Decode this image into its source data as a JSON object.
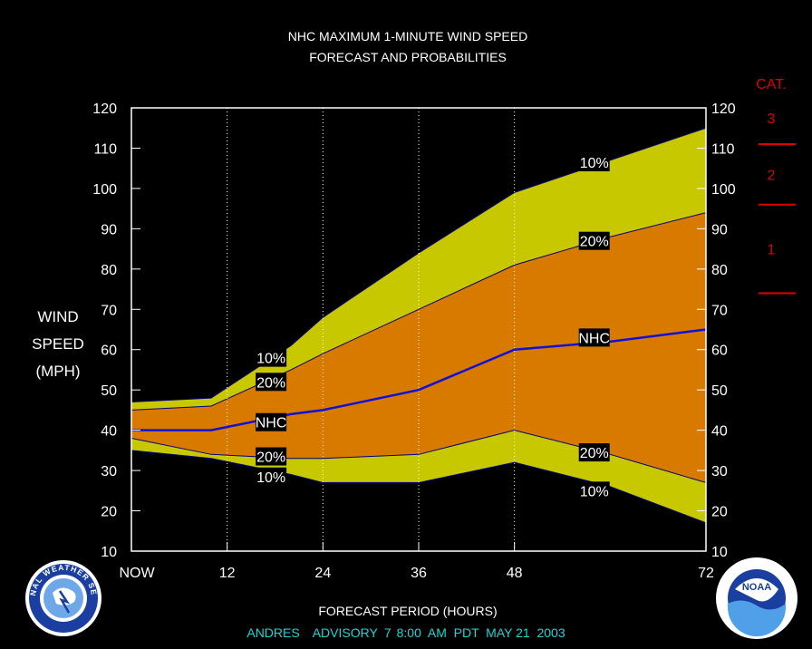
{
  "chart_data": {
    "type": "area",
    "title_line1": "NHC MAXIMUM 1-MINUTE WIND SPEED",
    "title_line2": "FORECAST AND PROBABILITIES",
    "ylabel_lines": [
      "WIND",
      "SPEED",
      "(MPH)"
    ],
    "xlabel": "FORECAST PERIOD (HOURS)",
    "xlim": [
      0,
      72
    ],
    "ylim": [
      10,
      120
    ],
    "x_ticks": [
      {
        "x": 0,
        "label": "NOW"
      },
      {
        "x": 12,
        "label": "12"
      },
      {
        "x": 24,
        "label": "24"
      },
      {
        "x": 36,
        "label": "36"
      },
      {
        "x": 48,
        "label": "48"
      },
      {
        "x": 72,
        "label": "72"
      }
    ],
    "y_ticks": [
      10,
      20,
      30,
      40,
      50,
      60,
      70,
      80,
      90,
      100,
      110,
      120
    ],
    "vertical_gridlines_x": [
      12,
      24,
      36,
      48
    ],
    "x": [
      0,
      10,
      20,
      24,
      36,
      48,
      60,
      72
    ],
    "series": [
      {
        "name": "10%",
        "role": "upper-10",
        "values": [
          47,
          48,
          61,
          68,
          84,
          99,
          107,
          115
        ]
      },
      {
        "name": "20%",
        "role": "upper-20",
        "values": [
          45,
          46,
          55,
          59,
          70,
          81,
          88,
          94
        ]
      },
      {
        "name": "NHC",
        "role": "forecast",
        "values": [
          40,
          40,
          44,
          45,
          50,
          60,
          62,
          65
        ]
      },
      {
        "name": "20%",
        "role": "lower-20",
        "values": [
          38,
          34,
          33,
          33,
          34,
          40,
          34,
          27
        ]
      },
      {
        "name": "10%",
        "role": "lower-10",
        "values": [
          35,
          33,
          29,
          27,
          27,
          32,
          26,
          17
        ]
      }
    ],
    "labels": [
      {
        "text": "10%",
        "x": 17.5,
        "y": 58
      },
      {
        "text": "20%",
        "x": 17.5,
        "y": 52
      },
      {
        "text": "NHC",
        "x": 17.5,
        "y": 42
      },
      {
        "text": "20%",
        "x": 17.5,
        "y": 33.5
      },
      {
        "text": "10%",
        "x": 17.5,
        "y": 28.5
      },
      {
        "text": "10%",
        "x": 58,
        "y": 106.5
      },
      {
        "text": "20%",
        "x": 58,
        "y": 87
      },
      {
        "text": "NHC",
        "x": 58,
        "y": 63
      },
      {
        "text": "20%",
        "x": 58,
        "y": 34.5
      },
      {
        "text": "10%",
        "x": 58,
        "y": 25
      }
    ],
    "category_scale": {
      "title": "CAT.",
      "boundaries_mph": [
        111,
        96,
        74
      ],
      "labels": [
        {
          "text": "3",
          "y": 117.5
        },
        {
          "text": "2",
          "y": 103.5
        },
        {
          "text": "1",
          "y": 85
        }
      ]
    },
    "colors": {
      "outer_band": "#c8c800",
      "inner_band": "#d87a00",
      "forecast_line": "#1010d8",
      "category": "#dd0000",
      "footer": "#1ad6d6",
      "grid": "#ffffff",
      "axes_text": "#ffffff",
      "band_edge": "#000080"
    }
  },
  "footer": {
    "storm": "ANDRES",
    "advisory": "ADVISORY",
    "number": "7",
    "time": "8:00  AM  PDT  MAY 21  2003"
  },
  "logos": [
    {
      "name": "nws-logo",
      "text": "NATIONAL WEATHER SERVICE"
    },
    {
      "name": "noaa-logo",
      "text": "NOAA"
    }
  ]
}
